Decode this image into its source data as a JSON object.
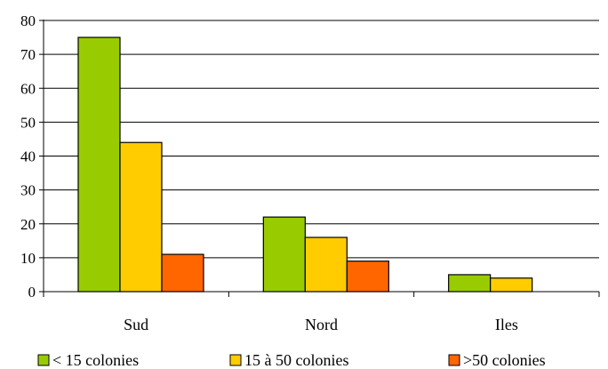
{
  "chart_data": {
    "type": "bar",
    "categories": [
      "Sud",
      "Nord",
      "Iles"
    ],
    "series": [
      {
        "name": "< 15 colonies",
        "color": "#99cc00",
        "values": [
          75,
          22,
          5
        ]
      },
      {
        "name": "15 à 50 colonies",
        "color": "#ffcc00",
        "values": [
          44,
          16,
          4
        ]
      },
      {
        "name": ">50 colonies",
        "color": "#ff6600",
        "values": [
          11,
          9,
          0
        ]
      }
    ],
    "ylim": [
      0,
      80
    ],
    "yticks": [
      0,
      10,
      20,
      30,
      40,
      50,
      60,
      70,
      80
    ],
    "grid": true,
    "legend_position": "bottom"
  }
}
